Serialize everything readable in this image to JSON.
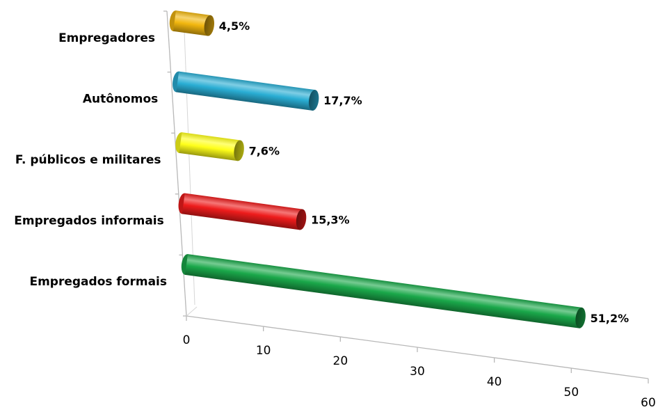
{
  "chart_data": {
    "type": "bar",
    "orientation": "horizontal",
    "categories": [
      "Empregados formais",
      "Empregados informais",
      "F. públicos e militares",
      "Autônomos",
      "Empregadores"
    ],
    "values": [
      51.2,
      15.3,
      7.6,
      17.7,
      4.5
    ],
    "data_labels": [
      "51,2%",
      "15,3%",
      "7,6%",
      "17,7%",
      "4,5%"
    ],
    "colors": [
      "#1aa84a",
      "#ee1c1c",
      "#ffff1a",
      "#2aaed4",
      "#f2b70f"
    ],
    "xlim": [
      0,
      60
    ],
    "x_ticks": [
      0,
      10,
      20,
      30,
      40,
      50,
      60
    ],
    "x_tick_labels": [
      "0",
      "10",
      "20",
      "30",
      "40",
      "50",
      "60"
    ],
    "title": "",
    "xlabel": "",
    "ylabel": "",
    "grid": false,
    "legend": "none",
    "style": "3d-cylinder"
  }
}
